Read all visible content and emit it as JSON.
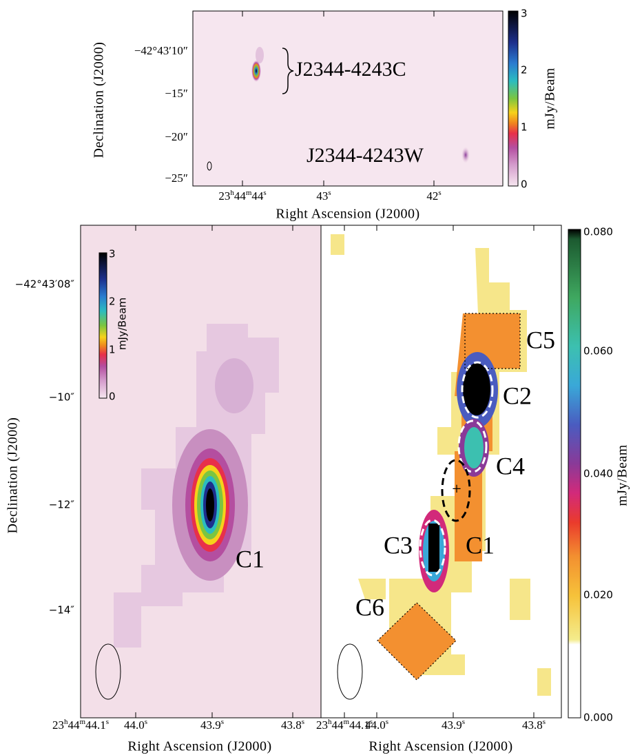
{
  "top_panel": {
    "y_title": "Declination (J2000)",
    "x_title": "Right Ascension (J2000)",
    "y_ticks": [
      "−42°43′10″",
      "−15″",
      "−20″",
      "−25″"
    ],
    "x_ticks": [
      [
        "23",
        "h",
        "44",
        "m",
        "44",
        "s"
      ],
      [
        "43",
        "s"
      ],
      [
        "42",
        "s"
      ]
    ],
    "colorbar_title": "mJy/Beam",
    "colorbar_ticks": [
      "3",
      "2",
      "1",
      "0"
    ],
    "annotations": [
      "J2344-4243C",
      "J2344-4243W"
    ]
  },
  "bottom_left": {
    "y_title": "Declination (J2000)",
    "x_title": "Right Ascension (J2000)",
    "y_ticks": [
      "−42°43′08″",
      "−10″",
      "−12″",
      "−14″"
    ],
    "x_ticks": [
      [
        "23",
        "h",
        "44",
        "m",
        "44.1",
        "s"
      ],
      [
        "44.0",
        "s"
      ],
      [
        "43.9",
        "s"
      ],
      [
        "43.8",
        "s"
      ]
    ],
    "colorbar_title": "mJy/Beam",
    "colorbar_ticks": [
      "3",
      "2",
      "1",
      "0"
    ],
    "labels": [
      "C1"
    ]
  },
  "bottom_right": {
    "x_title": "Right Ascension (J2000)",
    "x_ticks": [
      [
        "23",
        "h",
        "44",
        "m",
        "44.1",
        "s"
      ],
      [
        "44.0",
        "s"
      ],
      [
        "43.9",
        "s"
      ],
      [
        "43.8",
        "s"
      ]
    ],
    "colorbar_title": "mJy/Beam",
    "colorbar_ticks": [
      "0.080",
      "0.060",
      "0.040",
      "0.020",
      "0.000"
    ],
    "labels": [
      "C5",
      "C2",
      "C4",
      "C3",
      "C1",
      "C6"
    ],
    "center_marker": "+"
  }
}
